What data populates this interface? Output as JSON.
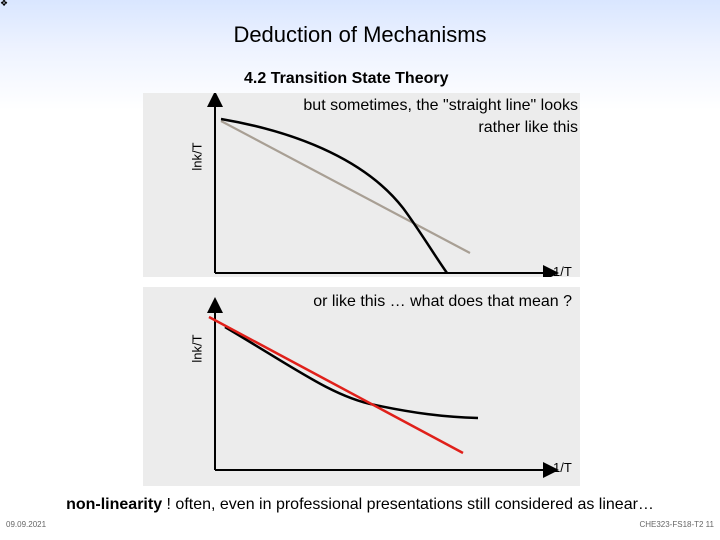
{
  "slide": {
    "corner_mark": "❖",
    "title": "Deduction of Mechanisms",
    "section_title": "4.2 Transition State Theory"
  },
  "panel_top": {
    "caption_line1": "but sometimes, the \"straight line\" looks",
    "caption_line2": "rather like this",
    "ylabel": "lnk/T",
    "xlabel": "1/T",
    "line_color": "#a89f94",
    "curve_color": "#000000"
  },
  "panel_bottom": {
    "caption": "or like this … what does that mean ?",
    "ylabel": "lnk/T",
    "xlabel": "1/T",
    "line_color": "#e0201a",
    "curve_color": "#000000"
  },
  "footer": {
    "note_bold": "non-linearity",
    "note_rest": " ! often, even in professional presentations still considered as linear…",
    "date": "09.09.2021",
    "ref": "CHE323-FS18-T2 11"
  }
}
